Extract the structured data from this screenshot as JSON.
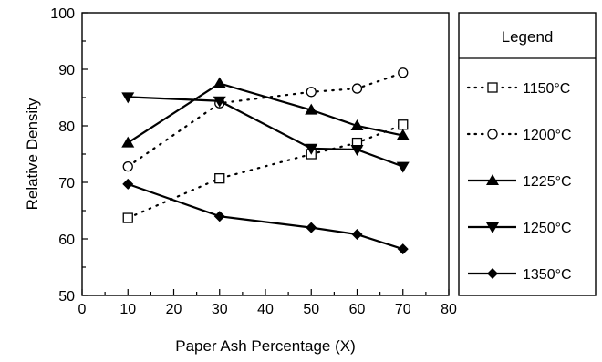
{
  "chart_data": {
    "type": "line",
    "title": "",
    "xlabel": "Paper Ash Percentage (X)",
    "ylabel": "Relative Density",
    "xlim": [
      0,
      80
    ],
    "ylim": [
      50,
      100
    ],
    "x_ticks": [
      "0",
      "10",
      "20",
      "30",
      "40",
      "50",
      "60",
      "70",
      "80"
    ],
    "y_ticks": [
      "50",
      "60",
      "70",
      "80",
      "90",
      "100"
    ],
    "grid": false,
    "legend": {
      "title": "Legend",
      "position": "right-outside"
    },
    "series": [
      {
        "name": "1150°C",
        "marker": "square-open",
        "line": "dotted",
        "x": [
          10,
          30,
          50,
          60,
          70
        ],
        "y": [
          63.7,
          70.7,
          75.0,
          77.0,
          80.2
        ]
      },
      {
        "name": "1200°C",
        "marker": "circle-open",
        "line": "dotted",
        "x": [
          10,
          30,
          50,
          60,
          70
        ],
        "y": [
          72.8,
          84.0,
          86.0,
          86.6,
          89.4
        ]
      },
      {
        "name": "1225°C",
        "marker": "triangle-up-filled",
        "line": "solid",
        "x": [
          10,
          30,
          50,
          60,
          70
        ],
        "y": [
          77.0,
          87.5,
          82.8,
          80.0,
          78.3
        ]
      },
      {
        "name": "1250°C",
        "marker": "triangle-down-filled",
        "line": "solid",
        "x": [
          10,
          30,
          50,
          60,
          70
        ],
        "y": [
          85.1,
          84.4,
          76.0,
          75.8,
          72.8
        ]
      },
      {
        "name": "1350°C",
        "marker": "diamond-filled",
        "line": "solid",
        "x": [
          10,
          30,
          50,
          60,
          70
        ],
        "y": [
          69.7,
          64.0,
          62.0,
          60.8,
          58.2
        ]
      }
    ]
  }
}
